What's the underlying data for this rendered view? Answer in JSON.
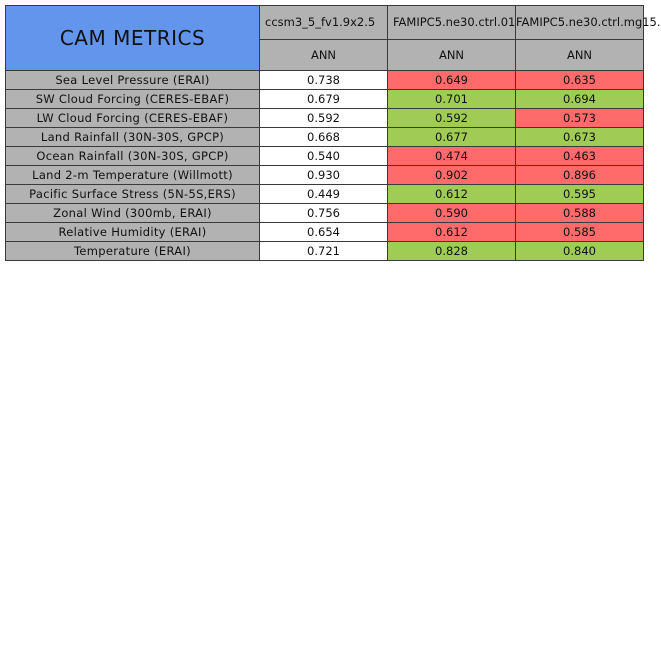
{
  "table": {
    "title": "CAM METRICS",
    "columns": [
      {
        "case": "ccsm3_5_fv1.9x2.5",
        "period": "ANN"
      },
      {
        "case": "FAMIPC5.ne30.ctrl.01",
        "period": "ANN"
      },
      {
        "case": "FAMIPC5.ne30.ctrl.mg15.",
        "period": "ANN"
      }
    ],
    "rows": [
      {
        "label": "Sea Level Pressure (ERAI)",
        "values": [
          "0.738",
          "0.649",
          "0.635"
        ],
        "status": [
          "neutral",
          "worse",
          "worse"
        ]
      },
      {
        "label": "SW Cloud Forcing (CERES-EBAF)",
        "values": [
          "0.679",
          "0.701",
          "0.694"
        ],
        "status": [
          "neutral",
          "better",
          "better"
        ]
      },
      {
        "label": "LW Cloud Forcing (CERES-EBAF)",
        "values": [
          "0.592",
          "0.592",
          "0.573"
        ],
        "status": [
          "neutral",
          "better",
          "worse"
        ]
      },
      {
        "label": "Land Rainfall (30N-30S, GPCP)",
        "values": [
          "0.668",
          "0.677",
          "0.673"
        ],
        "status": [
          "neutral",
          "better",
          "better"
        ]
      },
      {
        "label": "Ocean Rainfall (30N-30S, GPCP)",
        "values": [
          "0.540",
          "0.474",
          "0.463"
        ],
        "status": [
          "neutral",
          "worse",
          "worse"
        ]
      },
      {
        "label": "Land 2-m Temperature (Willmott)",
        "values": [
          "0.930",
          "0.902",
          "0.896"
        ],
        "status": [
          "neutral",
          "worse",
          "worse"
        ]
      },
      {
        "label": "Pacific Surface Stress (5N-5S,ERS)",
        "values": [
          "0.449",
          "0.612",
          "0.595"
        ],
        "status": [
          "neutral",
          "better",
          "better"
        ]
      },
      {
        "label": "Zonal Wind (300mb, ERAI)",
        "values": [
          "0.756",
          "0.590",
          "0.588"
        ],
        "status": [
          "neutral",
          "worse",
          "worse"
        ]
      },
      {
        "label": "Relative Humidity (ERAI)",
        "values": [
          "0.654",
          "0.612",
          "0.585"
        ],
        "status": [
          "neutral",
          "worse",
          "worse"
        ]
      },
      {
        "label": "Temperature (ERAI)",
        "values": [
          "0.721",
          "0.828",
          "0.840"
        ],
        "status": [
          "neutral",
          "better",
          "better"
        ]
      }
    ]
  },
  "colors": {
    "title_bg": "#6495ed",
    "header_bg": "#b2b2b2",
    "worse": "#ff6b6b",
    "better": "#a0cc55",
    "neutral": "#ffffff"
  },
  "chart_data": {
    "type": "table",
    "title": "CAM METRICS",
    "columns": [
      "ccsm3_5_fv1.9x2.5",
      "FAMIPC5.ne30.ctrl.01",
      "FAMIPC5.ne30.ctrl.mg15."
    ],
    "period": "ANN",
    "rows": [
      "Sea Level Pressure (ERAI)",
      "SW Cloud Forcing (CERES-EBAF)",
      "LW Cloud Forcing (CERES-EBAF)",
      "Land Rainfall (30N-30S, GPCP)",
      "Ocean Rainfall (30N-30S, GPCP)",
      "Land 2-m Temperature (Willmott)",
      "Pacific Surface Stress (5N-5S,ERS)",
      "Zonal Wind (300mb, ERAI)",
      "Relative Humidity (ERAI)",
      "Temperature (ERAI)"
    ],
    "values": [
      [
        0.738,
        0.649,
        0.635
      ],
      [
        0.679,
        0.701,
        0.694
      ],
      [
        0.592,
        0.592,
        0.573
      ],
      [
        0.668,
        0.677,
        0.673
      ],
      [
        0.54,
        0.474,
        0.463
      ],
      [
        0.93,
        0.902,
        0.896
      ],
      [
        0.449,
        0.612,
        0.595
      ],
      [
        0.756,
        0.59,
        0.588
      ],
      [
        0.654,
        0.612,
        0.585
      ],
      [
        0.721,
        0.828,
        0.84
      ]
    ]
  }
}
